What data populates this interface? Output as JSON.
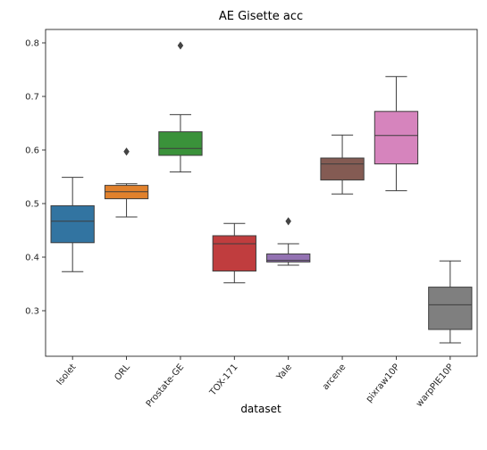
{
  "chart_data": {
    "type": "box",
    "title": "AE Gisette acc",
    "xlabel": "dataset",
    "ylabel": "",
    "ylim": [
      0.215,
      0.825
    ],
    "yticks": [
      0.3,
      0.4,
      0.5,
      0.6,
      0.7,
      0.8
    ],
    "grid": false,
    "categories": [
      "Isolet",
      "ORL",
      "Prostate-GE",
      "TOX-171",
      "Yale",
      "arcene",
      "pixraw10P",
      "warpPIE10P"
    ],
    "colors": [
      "#3274a1",
      "#e1812c",
      "#3a923a",
      "#c03d3e",
      "#9372b2",
      "#845b53",
      "#d684bd",
      "#7f7f7f"
    ],
    "boxes": [
      {
        "whisker_low": 0.373,
        "q1": 0.427,
        "median": 0.467,
        "q3": 0.496,
        "whisker_high": 0.549,
        "outliers": []
      },
      {
        "whisker_low": 0.475,
        "q1": 0.509,
        "median": 0.522,
        "q3": 0.534,
        "whisker_high": 0.537,
        "outliers": [
          0.597
        ]
      },
      {
        "whisker_low": 0.559,
        "q1": 0.59,
        "median": 0.603,
        "q3": 0.634,
        "whisker_high": 0.666,
        "outliers": [
          0.795
        ]
      },
      {
        "whisker_low": 0.352,
        "q1": 0.374,
        "median": 0.425,
        "q3": 0.44,
        "whisker_high": 0.463,
        "outliers": []
      },
      {
        "whisker_low": 0.385,
        "q1": 0.391,
        "median": 0.394,
        "q3": 0.406,
        "whisker_high": 0.425,
        "outliers": [
          0.467
        ]
      },
      {
        "whisker_low": 0.518,
        "q1": 0.544,
        "median": 0.574,
        "q3": 0.585,
        "whisker_high": 0.628,
        "outliers": []
      },
      {
        "whisker_low": 0.524,
        "q1": 0.574,
        "median": 0.627,
        "q3": 0.672,
        "whisker_high": 0.737,
        "outliers": []
      },
      {
        "whisker_low": 0.24,
        "q1": 0.265,
        "median": 0.311,
        "q3": 0.344,
        "whisker_high": 0.393,
        "outliers": []
      }
    ]
  }
}
